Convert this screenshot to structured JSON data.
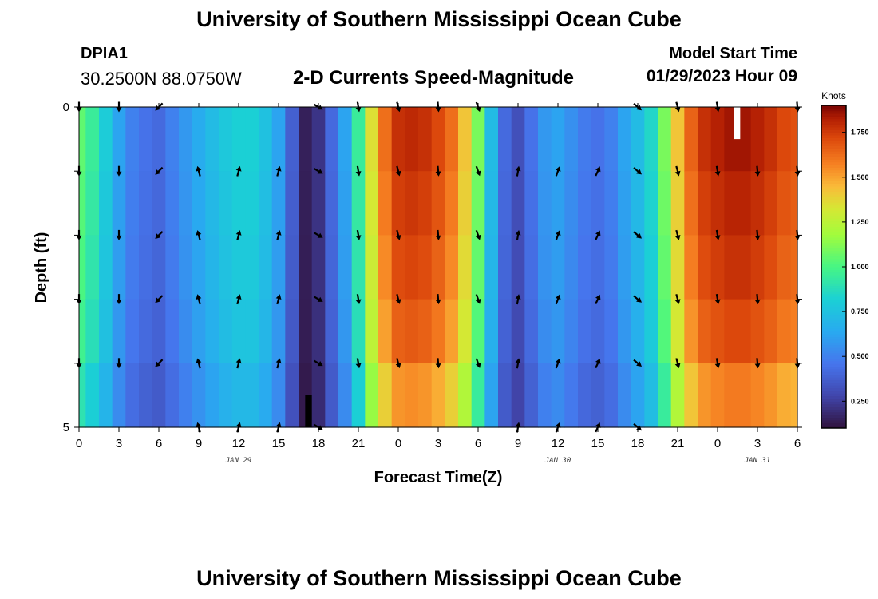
{
  "header": {
    "title": "University of Southern Mississippi Ocean Cube",
    "station_id": "DPIA1",
    "station_coords": "30.2500N  88.0750W",
    "chart_title": "2-D Currents Speed-Magnitude",
    "model_label": "Model Start Time",
    "model_time": "01/29/2023 Hour 09"
  },
  "footer": {
    "title": "University of Southern Mississippi Ocean Cube"
  },
  "chart_data": {
    "type": "heatmap",
    "title": "2-D Currents Speed-Magnitude",
    "xlabel": "Forecast Time(Z)",
    "ylabel": "Depth (ft)",
    "x_ticks": [
      "0",
      "3",
      "6",
      "9",
      "12",
      "15",
      "18",
      "21",
      "0",
      "3",
      "6",
      "9",
      "12",
      "15",
      "18",
      "21",
      "0",
      "3",
      "6"
    ],
    "x_hours": [
      0,
      3,
      6,
      9,
      12,
      15,
      18,
      21,
      24,
      27,
      30,
      33,
      36,
      39,
      42,
      45,
      48,
      51,
      54
    ],
    "date_labels": [
      {
        "text": "JAN 29",
        "hour": 12
      },
      {
        "text": "JAN 30",
        "hour": 36
      },
      {
        "text": "JAN 31",
        "hour": 51
      }
    ],
    "x_range_hours": [
      0,
      54
    ],
    "y_ticks": [
      "0",
      "5"
    ],
    "y_range": [
      0,
      5
    ],
    "depth_levels": [
      0.5,
      1.5,
      2.5,
      3.5,
      4.5
    ],
    "colorbar": {
      "unit": "Knots",
      "range": [
        0.1,
        1.9
      ],
      "ticks": [
        "0.250",
        "0.500",
        "0.750",
        "1.000",
        "1.250",
        "1.500",
        "1.750"
      ],
      "tick_values": [
        0.25,
        0.5,
        0.75,
        1.0,
        1.25,
        1.5,
        1.75
      ]
    },
    "speed_profile": [
      {
        "hour": 0,
        "speed": 1.05
      },
      {
        "hour": 1,
        "speed": 0.95
      },
      {
        "hour": 2,
        "speed": 0.8
      },
      {
        "hour": 3,
        "speed": 0.62
      },
      {
        "hour": 4,
        "speed": 0.5
      },
      {
        "hour": 5,
        "speed": 0.45
      },
      {
        "hour": 6,
        "speed": 0.42
      },
      {
        "hour": 7,
        "speed": 0.5
      },
      {
        "hour": 8,
        "speed": 0.58
      },
      {
        "hour": 9,
        "speed": 0.65
      },
      {
        "hour": 10,
        "speed": 0.72
      },
      {
        "hour": 11,
        "speed": 0.78
      },
      {
        "hour": 12,
        "speed": 0.82
      },
      {
        "hour": 13,
        "speed": 0.82
      },
      {
        "hour": 14,
        "speed": 0.75
      },
      {
        "hour": 15,
        "speed": 0.62
      },
      {
        "hour": 16,
        "speed": 0.38
      },
      {
        "hour": 17,
        "speed": 0.15
      },
      {
        "hour": 18,
        "speed": 0.22
      },
      {
        "hour": 19,
        "speed": 0.42
      },
      {
        "hour": 20,
        "speed": 0.62
      },
      {
        "hour": 21,
        "speed": 0.95
      },
      {
        "hour": 22,
        "speed": 1.35
      },
      {
        "hour": 23,
        "speed": 1.62
      },
      {
        "hour": 24,
        "speed": 1.78
      },
      {
        "hour": 25,
        "speed": 1.8
      },
      {
        "hour": 26,
        "speed": 1.78
      },
      {
        "hour": 27,
        "speed": 1.72
      },
      {
        "hour": 28,
        "speed": 1.62
      },
      {
        "hour": 29,
        "speed": 1.42
      },
      {
        "hour": 30,
        "speed": 1.1
      },
      {
        "hour": 31,
        "speed": 0.72
      },
      {
        "hour": 32,
        "speed": 0.42
      },
      {
        "hour": 33,
        "speed": 0.32
      },
      {
        "hour": 34,
        "speed": 0.45
      },
      {
        "hour": 35,
        "speed": 0.58
      },
      {
        "hour": 36,
        "speed": 0.62
      },
      {
        "hour": 37,
        "speed": 0.55
      },
      {
        "hour": 38,
        "speed": 0.48
      },
      {
        "hour": 39,
        "speed": 0.45
      },
      {
        "hour": 40,
        "speed": 0.5
      },
      {
        "hour": 41,
        "speed": 0.62
      },
      {
        "hour": 42,
        "speed": 0.72
      },
      {
        "hour": 43,
        "speed": 0.85
      },
      {
        "hour": 44,
        "speed": 1.1
      },
      {
        "hour": 45,
        "speed": 1.42
      },
      {
        "hour": 46,
        "speed": 1.65
      },
      {
        "hour": 47,
        "speed": 1.78
      },
      {
        "hour": 48,
        "speed": 1.82
      },
      {
        "hour": 49,
        "speed": 1.85
      },
      {
        "hour": 50,
        "speed": 1.85
      },
      {
        "hour": 51,
        "speed": 1.82
      },
      {
        "hour": 52,
        "speed": 1.78
      },
      {
        "hour": 53,
        "speed": 1.72
      },
      {
        "hour": 54,
        "speed": 1.7
      }
    ],
    "depth_factors": [
      1.0,
      0.98,
      0.96,
      0.93,
      0.86
    ],
    "missing_cells": [
      {
        "hour_start": 17,
        "hour_end": 17.5,
        "depth_start": 4.5,
        "depth_end": 5.0,
        "color": "#000000"
      },
      {
        "hour_start": 49.2,
        "hour_end": 49.7,
        "depth_start": 0.0,
        "depth_end": 0.5,
        "color": "#ffffff"
      }
    ],
    "vector_hours": [
      0,
      3,
      6,
      9,
      12,
      15,
      18,
      21,
      24,
      27,
      30,
      33,
      36,
      39,
      42,
      45,
      48,
      51,
      54
    ],
    "vector_depths": [
      0.0,
      1.0,
      2.0,
      3.0,
      4.0,
      5.0
    ],
    "vector_directions_deg": [
      180,
      180,
      225,
      345,
      15,
      15,
      120,
      170,
      165,
      175,
      160,
      10,
      20,
      25,
      130,
      165,
      170,
      175,
      175
    ],
    "vector_missing": [
      {
        "hour": 0,
        "depth": 5.0
      },
      {
        "hour": 3,
        "depth": 5.0
      },
      {
        "hour": 6,
        "depth": 5.0
      },
      {
        "hour": 9,
        "depth": 0.0
      },
      {
        "hour": 12,
        "depth": 0.0
      },
      {
        "hour": 15,
        "depth": 0.0
      },
      {
        "hour": 24,
        "depth": 5.0
      },
      {
        "hour": 21,
        "depth": 5.0
      },
      {
        "hour": 27,
        "depth": 5.0
      },
      {
        "hour": 30,
        "depth": 5.0
      },
      {
        "hour": 33,
        "depth": 0.0
      },
      {
        "hour": 36,
        "depth": 0.0
      },
      {
        "hour": 39,
        "depth": 0.0
      },
      {
        "hour": 45,
        "depth": 5.0
      },
      {
        "hour": 48,
        "depth": 5.0
      },
      {
        "hour": 51,
        "depth": 5.0
      },
      {
        "hour": 54,
        "depth": 5.0
      },
      {
        "hour": 51,
        "depth": 0.0
      }
    ]
  },
  "colors": {
    "background": "#ffffff",
    "axis": "#000000",
    "arrow": "#000000"
  }
}
